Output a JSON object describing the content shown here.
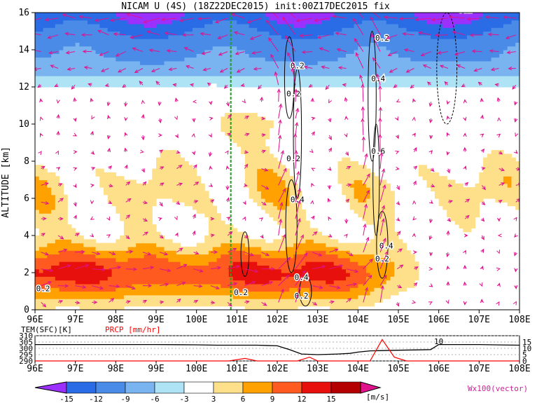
{
  "title": "NICAM U (4S) (18Z22DEC2015) init:00Z17DEC2015 fix",
  "chart_data": [
    {
      "type": "heatmap",
      "title": "NICAM U (4S) (18Z22DEC2015) init:00Z17DEC2015 fix",
      "ylabel": "ALTITUDE [km]",
      "xlabel": "",
      "x_ticks": [
        "96E",
        "97E",
        "98E",
        "99E",
        "100E",
        "101E",
        "102E",
        "103E",
        "104E",
        "105E",
        "106E",
        "107E",
        "108E"
      ],
      "y_ticks": [
        0,
        2,
        4,
        6,
        8,
        10,
        12,
        14,
        16
      ],
      "xlim": [
        96,
        108
      ],
      "ylim": [
        0,
        16
      ],
      "color_levels": [
        -15,
        -12,
        -9,
        -6,
        -3,
        3,
        6,
        9,
        12,
        15
      ],
      "colorbar_unit": "[m/s]",
      "vector_label": "Wx100(vector)",
      "contour_labels": [
        "0.2",
        "0.2",
        "0.2",
        "0.4",
        "0.2",
        "0.2",
        "0.4",
        "0.6",
        "0.4",
        "0.2",
        "-0.2",
        "0.2",
        "0.4",
        "0.2"
      ],
      "colorbar_colors": [
        "#9b30ff",
        "#2a6ce6",
        "#4a8be8",
        "#7ab4f0",
        "#aee2f5",
        "#ffffff",
        "#ffe08a",
        "#ffa100",
        "#ff5a1f",
        "#e8100c",
        "#b40000",
        "#e0128c"
      ]
    },
    {
      "type": "line",
      "title": "",
      "series": [
        {
          "name": "TEM(SFC)[K]",
          "color": "#000000",
          "x": [
            96,
            97,
            98,
            99,
            100,
            100.5,
            101,
            101.5,
            102,
            102.3,
            102.6,
            103,
            103.5,
            103.8,
            104,
            104.3,
            104.6,
            105,
            105.5,
            105.8,
            106,
            106.5,
            107,
            107.5,
            108
          ],
          "y": [
            303,
            303,
            303,
            303,
            302.8,
            302.5,
            302.5,
            302.5,
            302,
            299,
            295.5,
            295,
            295.5,
            296,
            297,
            298,
            298.2,
            298.5,
            298.8,
            299,
            303,
            303,
            303,
            302.7,
            302.5
          ]
        },
        {
          "name": "PRCP [mm/hr]",
          "color": "#ff0000",
          "x": [
            96,
            98,
            100,
            100.8,
            101.2,
            101.5,
            102,
            102.5,
            102.8,
            103,
            103.5,
            104,
            104.3,
            104.6,
            104.9,
            105.2,
            105.6,
            106,
            107,
            108
          ],
          "y": [
            0,
            0,
            0,
            0,
            2,
            0,
            0,
            0,
            3,
            0,
            0,
            0,
            0,
            17,
            3,
            0,
            0,
            0,
            0,
            0
          ]
        }
      ],
      "x_ticks": [
        "96E",
        "97E",
        "98E",
        "99E",
        "100E",
        "101E",
        "102E",
        "103E",
        "104E",
        "105E",
        "106E",
        "107E",
        "108E"
      ],
      "y_ticks_left": [
        290,
        295,
        300,
        305,
        310
      ],
      "y_ticks_right": [
        0,
        5,
        10,
        15
      ],
      "ylim": [
        290,
        310
      ],
      "ylim_right": [
        0,
        20
      ],
      "annotation": "10"
    }
  ]
}
